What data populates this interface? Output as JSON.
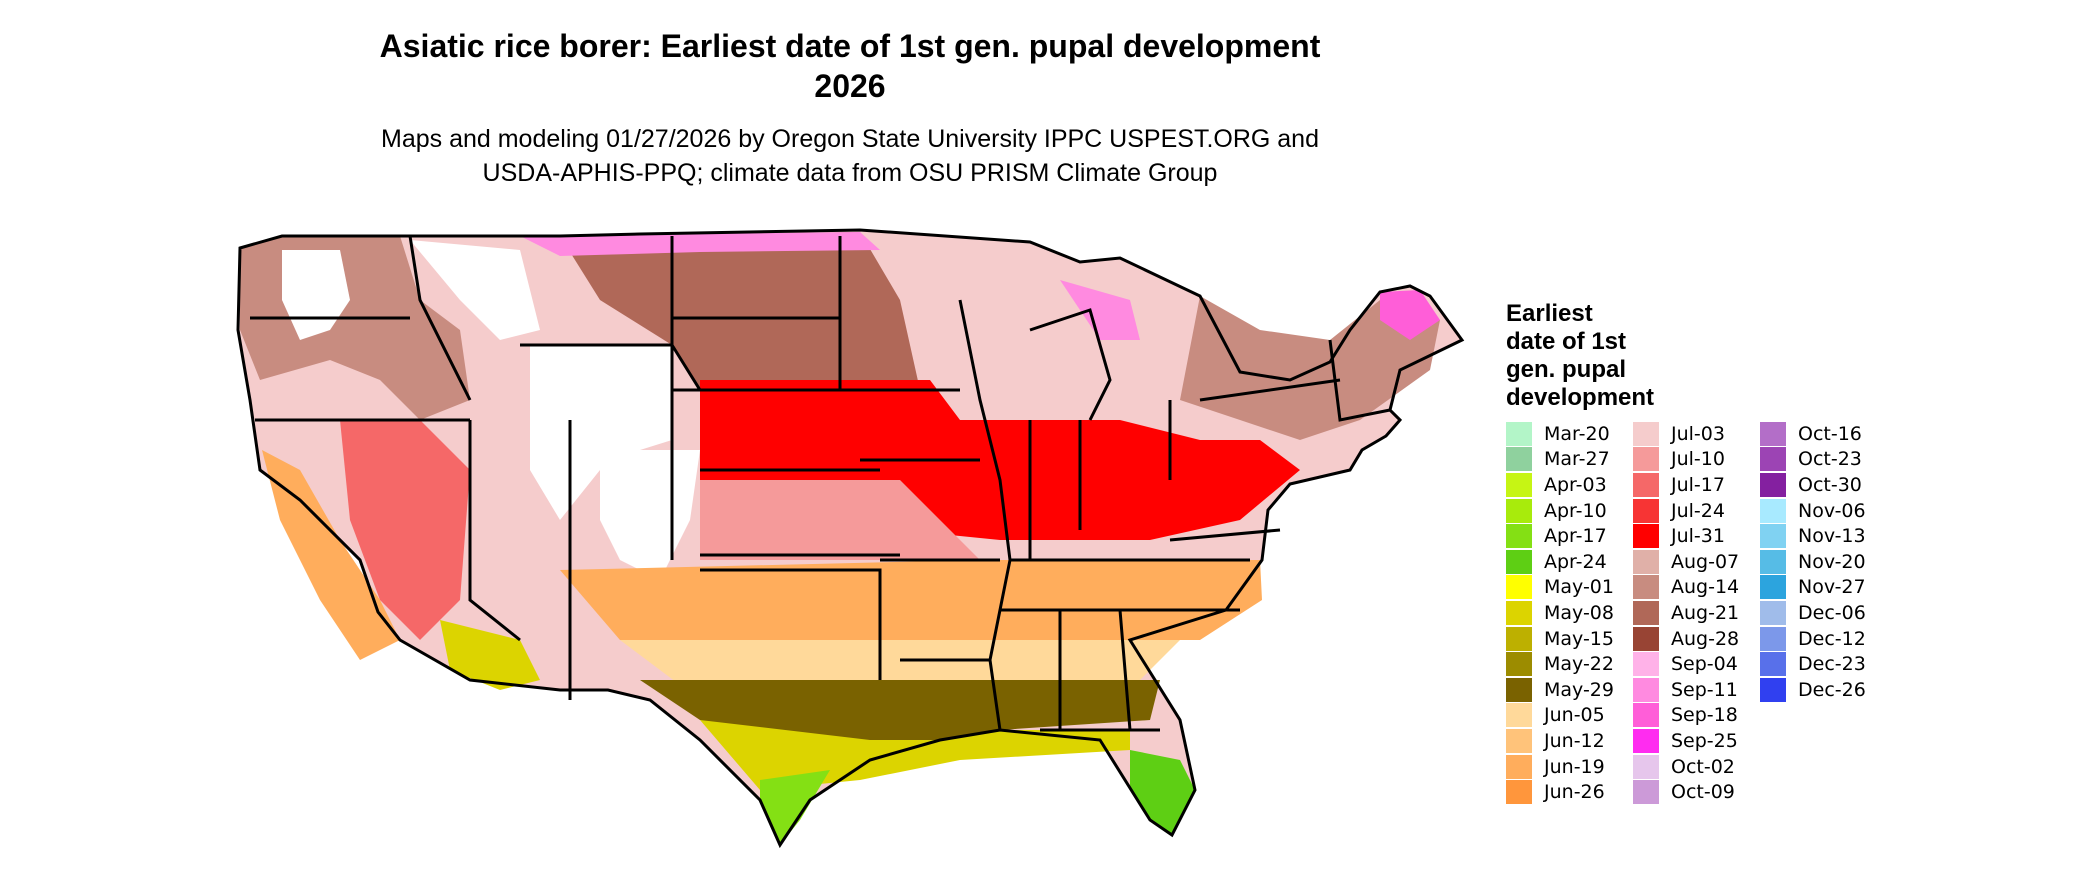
{
  "title_line1": "Asiatic rice borer: Earliest date of 1st gen. pupal development",
  "title_line2": "2026",
  "subtitle_line1": "Maps and modeling 01/27/2026 by Oregon State University IPPC USPEST.ORG and",
  "subtitle_line2": "USDA-APHIS-PPQ; climate data from OSU PRISM Climate Group",
  "legend": {
    "title_lines": [
      "Earliest",
      "date of 1st",
      "gen. pupal",
      "development"
    ],
    "columns": [
      [
        {
          "label": "Mar-20",
          "color": "#b3f5c8"
        },
        {
          "label": "Mar-27",
          "color": "#8fd19e"
        },
        {
          "label": "Apr-03",
          "color": "#c6f514"
        },
        {
          "label": "Apr-10",
          "color": "#a8eb0c"
        },
        {
          "label": "Apr-17",
          "color": "#84e014"
        },
        {
          "label": "Apr-24",
          "color": "#5ecf14"
        },
        {
          "label": "May-01",
          "color": "#ffff00"
        },
        {
          "label": "May-08",
          "color": "#dcd400"
        },
        {
          "label": "May-15",
          "color": "#bdb000"
        },
        {
          "label": "May-22",
          "color": "#9c8c00"
        },
        {
          "label": "May-29",
          "color": "#7a6200"
        },
        {
          "label": "Jun-05",
          "color": "#ffd99a"
        },
        {
          "label": "Jun-12",
          "color": "#ffc37a"
        },
        {
          "label": "Jun-19",
          "color": "#ffad5c"
        },
        {
          "label": "Jun-26",
          "color": "#ff963c"
        }
      ],
      [
        {
          "label": "Jul-03",
          "color": "#f5cccc"
        },
        {
          "label": "Jul-10",
          "color": "#f59a9a"
        },
        {
          "label": "Jul-17",
          "color": "#f56868"
        },
        {
          "label": "Jul-24",
          "color": "#f73434"
        },
        {
          "label": "Jul-31",
          "color": "#ff0000"
        },
        {
          "label": "Aug-07",
          "color": "#e0b0a8"
        },
        {
          "label": "Aug-14",
          "color": "#c88c80"
        },
        {
          "label": "Aug-21",
          "color": "#b06858"
        },
        {
          "label": "Aug-28",
          "color": "#984434"
        },
        {
          "label": "Sep-04",
          "color": "#ffb2e8"
        },
        {
          "label": "Sep-11",
          "color": "#ff8ae0"
        },
        {
          "label": "Sep-18",
          "color": "#ff5ed8"
        },
        {
          "label": "Sep-25",
          "color": "#ff2cf0"
        },
        {
          "label": "Oct-02",
          "color": "#e6c6ec"
        },
        {
          "label": "Oct-09",
          "color": "#cc9ad8"
        }
      ],
      [
        {
          "label": "Oct-16",
          "color": "#b36ec8"
        },
        {
          "label": "Oct-23",
          "color": "#9c44b4"
        },
        {
          "label": "Oct-30",
          "color": "#8420a0"
        },
        {
          "label": "Nov-06",
          "color": "#a8eaff"
        },
        {
          "label": "Nov-13",
          "color": "#80d2f2"
        },
        {
          "label": "Nov-20",
          "color": "#56bce6"
        },
        {
          "label": "Nov-27",
          "color": "#2ca4de"
        },
        {
          "label": "Dec-06",
          "color": "#a0bcea"
        },
        {
          "label": "Dec-12",
          "color": "#7c98ea"
        },
        {
          "label": "Dec-23",
          "color": "#5870ea"
        },
        {
          "label": "Dec-26",
          "color": "#3040f0"
        }
      ]
    ]
  }
}
